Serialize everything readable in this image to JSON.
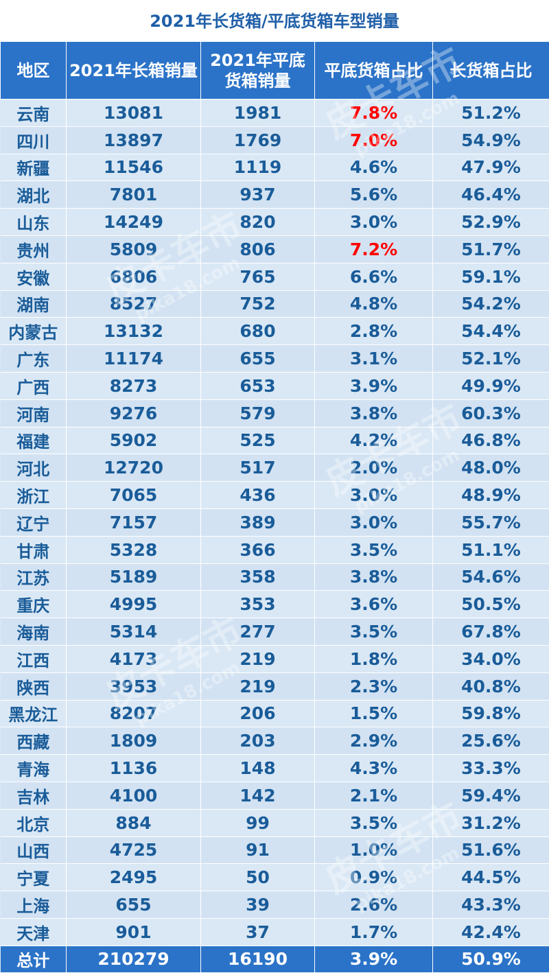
{
  "title": "2021年长货箱/平底货箱车型销量",
  "headers": [
    "地区",
    "2021年长箱销量",
    "2021年平底货箱销量",
    "平底货箱占比",
    "长货箱占比"
  ],
  "highlight_color": "#ff0000",
  "rows": [
    {
      "region": "云南",
      "long": "13081",
      "flat": "1981",
      "flat_pct": "7.8%",
      "long_pct": "51.2%",
      "hl": true
    },
    {
      "region": "四川",
      "long": "13897",
      "flat": "1769",
      "flat_pct": "7.0%",
      "long_pct": "54.9%",
      "hl": true
    },
    {
      "region": "新疆",
      "long": "11546",
      "flat": "1119",
      "flat_pct": "4.6%",
      "long_pct": "47.9%"
    },
    {
      "region": "湖北",
      "long": "7801",
      "flat": "937",
      "flat_pct": "5.6%",
      "long_pct": "46.4%"
    },
    {
      "region": "山东",
      "long": "14249",
      "flat": "820",
      "flat_pct": "3.0%",
      "long_pct": "52.9%"
    },
    {
      "region": "贵州",
      "long": "5809",
      "flat": "806",
      "flat_pct": "7.2%",
      "long_pct": "51.7%",
      "hl": true
    },
    {
      "region": "安徽",
      "long": "6806",
      "flat": "765",
      "flat_pct": "6.6%",
      "long_pct": "59.1%"
    },
    {
      "region": "湖南",
      "long": "8527",
      "flat": "752",
      "flat_pct": "4.8%",
      "long_pct": "54.2%"
    },
    {
      "region": "内蒙古",
      "long": "13132",
      "flat": "680",
      "flat_pct": "2.8%",
      "long_pct": "54.4%"
    },
    {
      "region": "广东",
      "long": "11174",
      "flat": "655",
      "flat_pct": "3.1%",
      "long_pct": "52.1%"
    },
    {
      "region": "广西",
      "long": "8273",
      "flat": "653",
      "flat_pct": "3.9%",
      "long_pct": "49.9%"
    },
    {
      "region": "河南",
      "long": "9276",
      "flat": "579",
      "flat_pct": "3.8%",
      "long_pct": "60.3%"
    },
    {
      "region": "福建",
      "long": "5902",
      "flat": "525",
      "flat_pct": "4.2%",
      "long_pct": "46.8%"
    },
    {
      "region": "河北",
      "long": "12720",
      "flat": "517",
      "flat_pct": "2.0%",
      "long_pct": "48.0%"
    },
    {
      "region": "浙江",
      "long": "7065",
      "flat": "436",
      "flat_pct": "3.0%",
      "long_pct": "48.9%"
    },
    {
      "region": "辽宁",
      "long": "7157",
      "flat": "389",
      "flat_pct": "3.0%",
      "long_pct": "55.7%"
    },
    {
      "region": "甘肃",
      "long": "5328",
      "flat": "366",
      "flat_pct": "3.5%",
      "long_pct": "51.1%"
    },
    {
      "region": "江苏",
      "long": "5189",
      "flat": "358",
      "flat_pct": "3.8%",
      "long_pct": "54.6%"
    },
    {
      "region": "重庆",
      "long": "4995",
      "flat": "353",
      "flat_pct": "3.6%",
      "long_pct": "50.5%"
    },
    {
      "region": "海南",
      "long": "5314",
      "flat": "277",
      "flat_pct": "3.5%",
      "long_pct": "67.8%"
    },
    {
      "region": "江西",
      "long": "4173",
      "flat": "219",
      "flat_pct": "1.8%",
      "long_pct": "34.0%"
    },
    {
      "region": "陕西",
      "long": "3953",
      "flat": "219",
      "flat_pct": "2.3%",
      "long_pct": "40.8%"
    },
    {
      "region": "黑龙江",
      "long": "8207",
      "flat": "206",
      "flat_pct": "1.5%",
      "long_pct": "59.8%"
    },
    {
      "region": "西藏",
      "long": "1809",
      "flat": "203",
      "flat_pct": "2.9%",
      "long_pct": "25.6%"
    },
    {
      "region": "青海",
      "long": "1136",
      "flat": "148",
      "flat_pct": "4.3%",
      "long_pct": "33.3%"
    },
    {
      "region": "吉林",
      "long": "4100",
      "flat": "142",
      "flat_pct": "2.1%",
      "long_pct": "59.4%"
    },
    {
      "region": "北京",
      "long": "884",
      "flat": "99",
      "flat_pct": "3.5%",
      "long_pct": "31.2%"
    },
    {
      "region": "山西",
      "long": "4725",
      "flat": "91",
      "flat_pct": "1.0%",
      "long_pct": "51.6%"
    },
    {
      "region": "宁夏",
      "long": "2495",
      "flat": "50",
      "flat_pct": "0.9%",
      "long_pct": "44.5%"
    },
    {
      "region": "上海",
      "long": "655",
      "flat": "39",
      "flat_pct": "2.6%",
      "long_pct": "43.3%"
    },
    {
      "region": "天津",
      "long": "901",
      "flat": "37",
      "flat_pct": "1.7%",
      "long_pct": "42.4%"
    }
  ],
  "total": {
    "region": "总计",
    "long": "210279",
    "flat": "16190",
    "flat_pct": "3.9%",
    "long_pct": "50.9%"
  },
  "watermark": {
    "brand": "皮卡车市",
    "site": "pika18.com"
  }
}
